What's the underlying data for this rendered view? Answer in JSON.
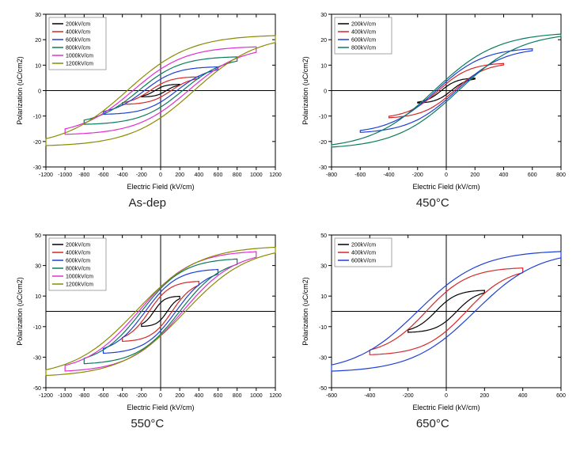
{
  "global": {
    "xlabel": "Electric Field (kV/cm)",
    "ylabel": "Polarization (uC/cm2)",
    "axis_label_fontsize": 9,
    "tick_fontsize": 7,
    "legend_fontsize": 7,
    "line_width": 1.2,
    "background_color": "#ffffff",
    "axis_color": "#000000",
    "tick_color": "#000000",
    "legend_border": "#808080"
  },
  "series_colors": {
    "200kV/cm": "#000000",
    "400kV/cm": "#d62728",
    "600kV/cm": "#1f3fd6",
    "800kV/cm": "#0a7a5c",
    "1000kV/cm": "#e02fd1",
    "1200kV/cm": "#8a8a00"
  },
  "panels": [
    {
      "id": "as-dep",
      "title": "As-dep",
      "type": "line-loop",
      "xlim": [
        -1200,
        1200
      ],
      "ylim": [
        -30,
        30
      ],
      "xtick_step": 200,
      "ytick_step": 10,
      "legend": [
        "200kV/cm",
        "400kV/cm",
        "600kV/cm",
        "800kV/cm",
        "1000kV/cm",
        "1200kV/cm"
      ],
      "loops": [
        {
          "series": "200kV/cm",
          "Emax": 200,
          "Pmax": 2.5,
          "Pr": 0.6,
          "Ec": 60
        },
        {
          "series": "400kV/cm",
          "Emax": 400,
          "Pmax": 5.5,
          "Pr": 1.3,
          "Ec": 110
        },
        {
          "series": "600kV/cm",
          "Emax": 600,
          "Pmax": 9.5,
          "Pr": 2.4,
          "Ec": 170
        },
        {
          "series": "800kV/cm",
          "Emax": 800,
          "Pmax": 13.5,
          "Pr": 3.6,
          "Ec": 230
        },
        {
          "series": "1000kV/cm",
          "Emax": 1000,
          "Pmax": 17.5,
          "Pr": 5.0,
          "Ec": 290
        },
        {
          "series": "1200kV/cm",
          "Emax": 1200,
          "Pmax": 22.0,
          "Pr": 6.5,
          "Ec": 350
        }
      ]
    },
    {
      "id": "450c",
      "title": "450°C",
      "type": "line-loop",
      "xlim": [
        -800,
        800
      ],
      "ylim": [
        -30,
        30
      ],
      "xtick_step": 200,
      "ytick_step": 10,
      "legend": [
        "200kV/cm",
        "400kV/cm",
        "600kV/cm",
        "800kV/cm"
      ],
      "loops": [
        {
          "series": "200kV/cm",
          "Emax": 200,
          "Pmax": 5.0,
          "Pr": 0.8,
          "Ec": 35
        },
        {
          "series": "400kV/cm",
          "Emax": 400,
          "Pmax": 11.0,
          "Pr": 1.6,
          "Ec": 55
        },
        {
          "series": "600kV/cm",
          "Emax": 600,
          "Pmax": 17.0,
          "Pr": 2.4,
          "Ec": 70
        },
        {
          "series": "800kV/cm",
          "Emax": 800,
          "Pmax": 23.0,
          "Pr": 3.2,
          "Ec": 85
        }
      ]
    },
    {
      "id": "550c",
      "title": "550°C",
      "type": "line-loop",
      "xlim": [
        -1200,
        1200
      ],
      "ylim": [
        -50,
        50
      ],
      "xtick_step": 200,
      "ytick_step": 20,
      "legend": [
        "200kV/cm",
        "400kV/cm",
        "600kV/cm",
        "800kV/cm",
        "1000kV/cm",
        "1200kV/cm"
      ],
      "loops": [
        {
          "series": "200kV/cm",
          "Emax": 200,
          "Pmax": 10,
          "Pr": 4,
          "Ec": 70
        },
        {
          "series": "400kV/cm",
          "Emax": 400,
          "Pmax": 20,
          "Pr": 8,
          "Ec": 120
        },
        {
          "series": "600kV/cm",
          "Emax": 600,
          "Pmax": 28,
          "Pr": 12,
          "Ec": 160
        },
        {
          "series": "800kV/cm",
          "Emax": 800,
          "Pmax": 35,
          "Pr": 15,
          "Ec": 200
        },
        {
          "series": "1000kV/cm",
          "Emax": 1000,
          "Pmax": 40,
          "Pr": 17,
          "Ec": 230
        },
        {
          "series": "1200kV/cm",
          "Emax": 1200,
          "Pmax": 43,
          "Pr": 18,
          "Ec": 260
        }
      ]
    },
    {
      "id": "650c",
      "title": "650°C",
      "type": "line-loop",
      "xlim": [
        -600,
        600
      ],
      "ylim": [
        -50,
        50
      ],
      "xtick_step": 200,
      "ytick_step": 20,
      "legend": [
        "200kV/cm",
        "400kV/cm",
        "600kV/cm"
      ],
      "loops": [
        {
          "series": "200kV/cm",
          "Emax": 200,
          "Pmax": 14,
          "Pr": 4,
          "Ec": 55
        },
        {
          "series": "400kV/cm",
          "Emax": 400,
          "Pmax": 29,
          "Pr": 10,
          "Ec": 105
        },
        {
          "series": "600kV/cm",
          "Emax": 600,
          "Pmax": 40,
          "Pr": 15,
          "Ec": 150
        }
      ]
    }
  ]
}
